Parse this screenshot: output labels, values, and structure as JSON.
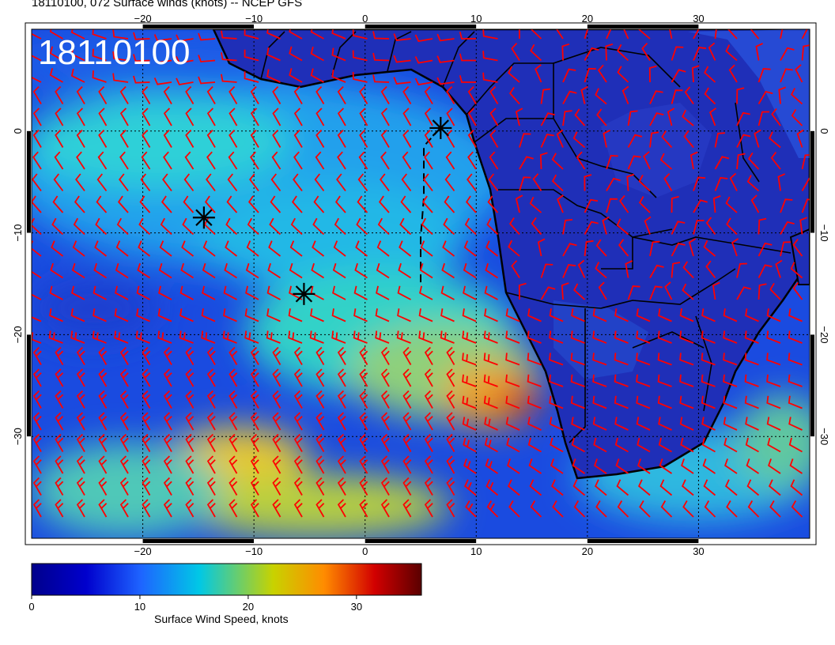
{
  "title": "18110100, 072 Surface winds (knots) -- NCEP GFS",
  "stamp": "18110100",
  "lon_ticks": [
    {
      "value": -20,
      "label": "−20"
    },
    {
      "value": -10,
      "label": "−10"
    },
    {
      "value": 0,
      "label": "0"
    },
    {
      "value": 10,
      "label": "10"
    },
    {
      "value": 20,
      "label": "20"
    },
    {
      "value": 30,
      "label": "30"
    }
  ],
  "lat_ticks": [
    {
      "value": 0,
      "label": "0"
    },
    {
      "value": -10,
      "label": "−10"
    },
    {
      "value": -20,
      "label": "−20"
    },
    {
      "value": -30,
      "label": "−30"
    }
  ],
  "extent": {
    "lon": [
      -30,
      40
    ],
    "lat": [
      -40,
      10
    ]
  },
  "colorbar": {
    "label": "Surface Wind Speed, knots",
    "ticks": [
      {
        "value": 0,
        "label": "0"
      },
      {
        "value": 10,
        "label": "10"
      },
      {
        "value": 20,
        "label": "20"
      },
      {
        "value": 30,
        "label": "30"
      }
    ],
    "range": [
      0,
      36
    ],
    "colors": [
      "#00008b",
      "#0000cd",
      "#1e64ff",
      "#00c8e6",
      "#c8d200",
      "#ff8c00",
      "#d20000",
      "#5a0000"
    ]
  },
  "markers": [
    {
      "name": "storm-marker-1",
      "lon": -14.5,
      "lat": -8.5
    },
    {
      "name": "storm-marker-2",
      "lon": -5.5,
      "lat": -16.0
    },
    {
      "name": "storm-marker-3",
      "lon": 6.8,
      "lat": 0.3
    }
  ],
  "barb_color": "#ff0000"
}
